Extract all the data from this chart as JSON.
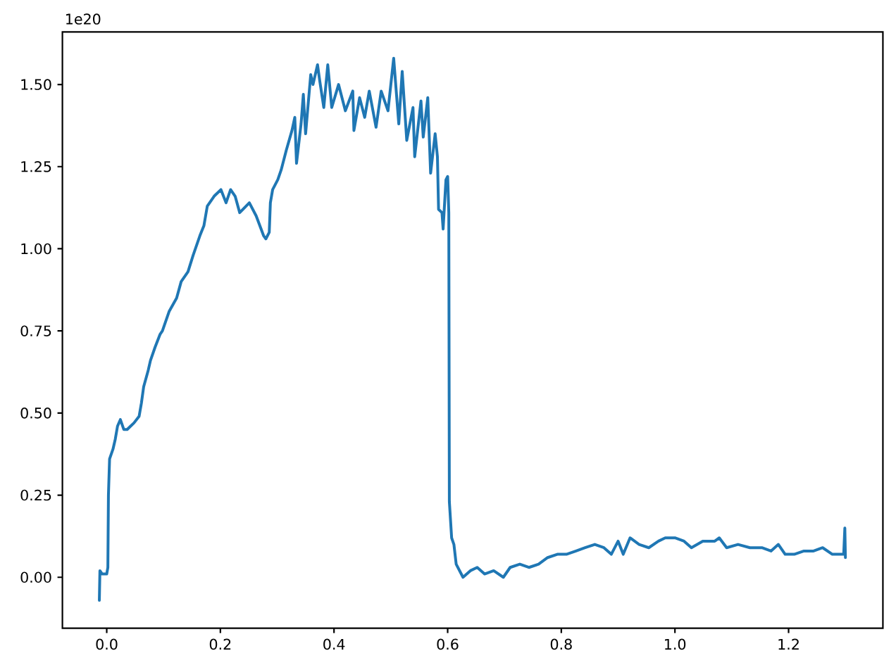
{
  "chart_data": {
    "type": "line",
    "annotations": [
      "1e20"
    ],
    "x": [
      -0.013,
      -0.012,
      -0.008,
      -0.004,
      0.0,
      0.002,
      0.003,
      0.005,
      0.011,
      0.015,
      0.019,
      0.024,
      0.03,
      0.036,
      0.042,
      0.048,
      0.057,
      0.061,
      0.065,
      0.073,
      0.077,
      0.085,
      0.094,
      0.098,
      0.11,
      0.123,
      0.131,
      0.143,
      0.152,
      0.164,
      0.171,
      0.177,
      0.189,
      0.201,
      0.21,
      0.218,
      0.226,
      0.234,
      0.251,
      0.263,
      0.276,
      0.28,
      0.286,
      0.288,
      0.292,
      0.301,
      0.307,
      0.316,
      0.326,
      0.331,
      0.334,
      0.342,
      0.346,
      0.35,
      0.359,
      0.363,
      0.371,
      0.375,
      0.382,
      0.389,
      0.396,
      0.408,
      0.42,
      0.433,
      0.435,
      0.445,
      0.454,
      0.462,
      0.474,
      0.483,
      0.495,
      0.505,
      0.514,
      0.52,
      0.528,
      0.539,
      0.542,
      0.553,
      0.557,
      0.565,
      0.57,
      0.578,
      0.582,
      0.584,
      0.59,
      0.592,
      0.597,
      0.6,
      0.602,
      0.603,
      0.607,
      0.611,
      0.615,
      0.627,
      0.64,
      0.652,
      0.665,
      0.681,
      0.698,
      0.71,
      0.727,
      0.743,
      0.76,
      0.776,
      0.793,
      0.809,
      0.826,
      0.842,
      0.859,
      0.875,
      0.888,
      0.9,
      0.909,
      0.921,
      0.937,
      0.954,
      0.971,
      0.983,
      1.0,
      1.016,
      1.029,
      1.049,
      1.07,
      1.078,
      1.091,
      1.111,
      1.132,
      1.153,
      1.169,
      1.182,
      1.194,
      1.21,
      1.227,
      1.244,
      1.26,
      1.277,
      1.297,
      1.299,
      1.3
    ],
    "series": [
      {
        "color": "#1f77b4",
        "values": [
          -0.07,
          0.02,
          0.01,
          0.01,
          0.01,
          0.03,
          0.25,
          0.36,
          0.39,
          0.42,
          0.46,
          0.48,
          0.45,
          0.45,
          0.46,
          0.47,
          0.49,
          0.53,
          0.58,
          0.63,
          0.66,
          0.7,
          0.74,
          0.75,
          0.81,
          0.85,
          0.9,
          0.93,
          0.98,
          1.04,
          1.07,
          1.13,
          1.16,
          1.18,
          1.14,
          1.18,
          1.16,
          1.11,
          1.14,
          1.1,
          1.04,
          1.03,
          1.05,
          1.14,
          1.18,
          1.21,
          1.24,
          1.3,
          1.36,
          1.4,
          1.26,
          1.38,
          1.47,
          1.35,
          1.53,
          1.5,
          1.56,
          1.51,
          1.43,
          1.56,
          1.43,
          1.5,
          1.42,
          1.48,
          1.36,
          1.46,
          1.4,
          1.48,
          1.37,
          1.48,
          1.42,
          1.58,
          1.38,
          1.54,
          1.33,
          1.43,
          1.28,
          1.45,
          1.34,
          1.46,
          1.23,
          1.35,
          1.28,
          1.12,
          1.11,
          1.06,
          1.21,
          1.22,
          1.11,
          0.23,
          0.12,
          0.1,
          0.04,
          0.0,
          0.02,
          0.03,
          0.01,
          0.02,
          0.0,
          0.03,
          0.04,
          0.03,
          0.04,
          0.06,
          0.07,
          0.07,
          0.08,
          0.09,
          0.1,
          0.09,
          0.07,
          0.11,
          0.07,
          0.12,
          0.1,
          0.09,
          0.11,
          0.12,
          0.12,
          0.11,
          0.09,
          0.11,
          0.11,
          0.12,
          0.09,
          0.1,
          0.09,
          0.09,
          0.08,
          0.1,
          0.07,
          0.07,
          0.08,
          0.08,
          0.09,
          0.07,
          0.07,
          0.15,
          0.06
        ]
      }
    ],
    "xlim": [
      -0.078,
      1.366
    ],
    "ylim": [
      -0.155,
      1.66
    ],
    "xticks": [
      {
        "value": 0,
        "label": "0.0"
      },
      0.2,
      0.4,
      0.6,
      0.8,
      {
        "value": 1,
        "label": "1.0"
      },
      1.2
    ],
    "yticks": [
      {
        "value": 0,
        "label": "0.00"
      },
      0.25,
      {
        "value": 0.5,
        "label": "0.50"
      },
      0.75,
      {
        "value": 1,
        "label": "1.00"
      },
      1.25,
      {
        "value": 1.5,
        "label": "1.50"
      }
    ],
    "line_style": "solid"
  }
}
